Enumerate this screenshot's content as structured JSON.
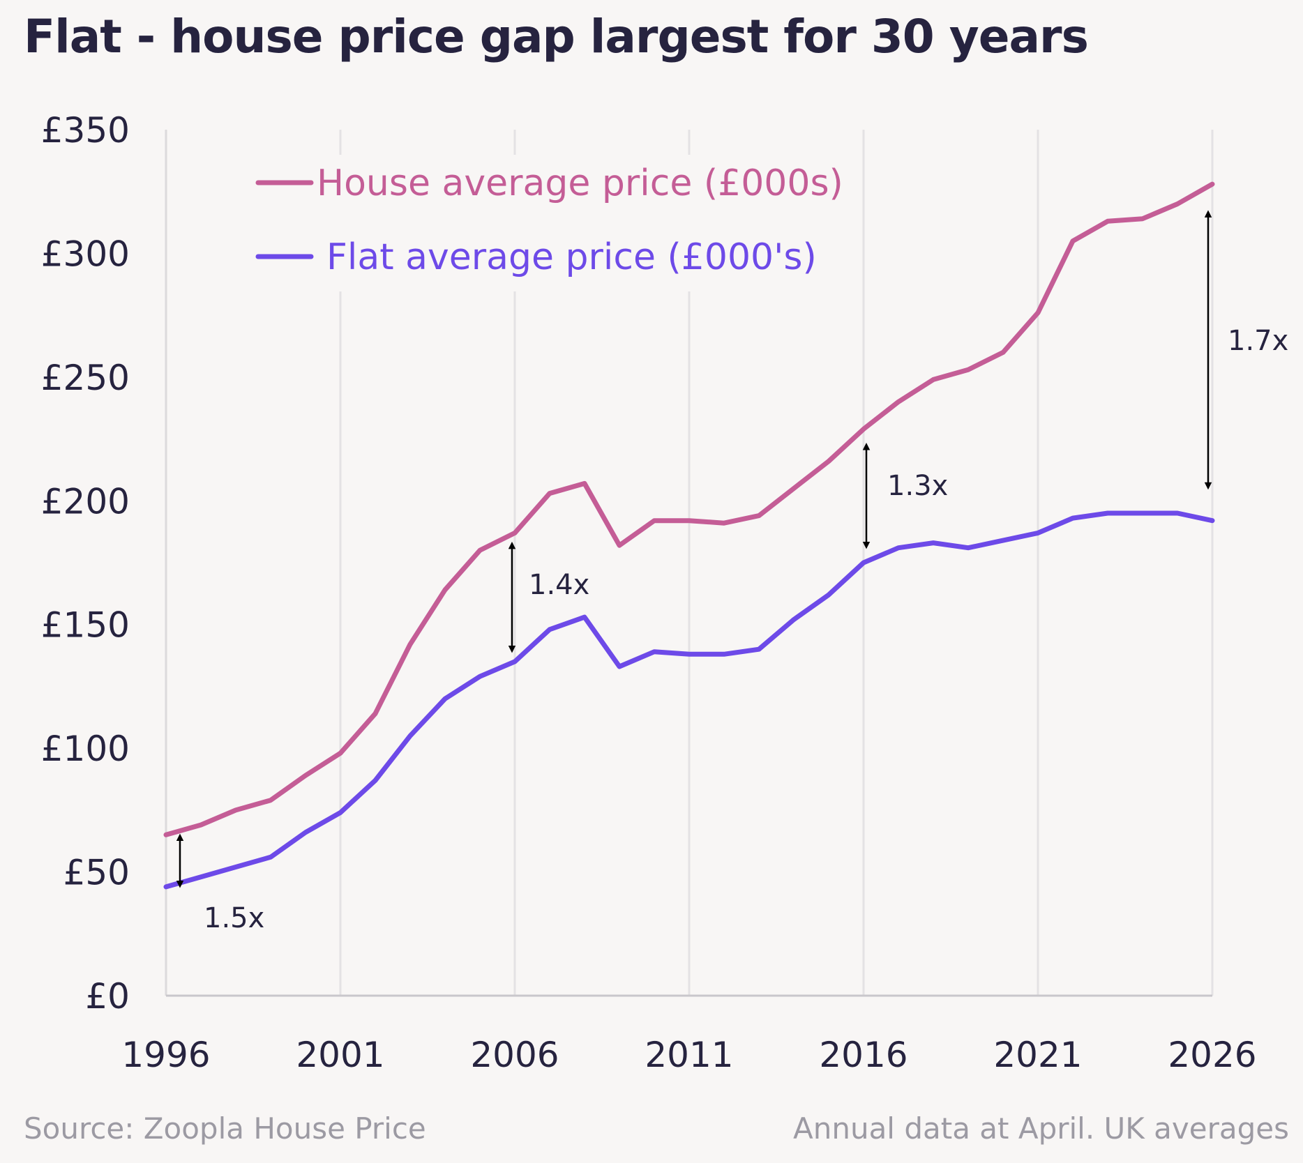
{
  "title": "Flat - house price gap largest for 30 years",
  "source": "Source: Zoopla House Price",
  "note": "Annual data at April. UK averages",
  "chart_data": {
    "type": "line",
    "title": "Flat - house price gap largest for 30 years",
    "x": [
      1996,
      1997,
      1998,
      1999,
      2000,
      2001,
      2002,
      2003,
      2004,
      2005,
      2006,
      2007,
      2008,
      2009,
      2010,
      2011,
      2012,
      2013,
      2014,
      2015,
      2016,
      2017,
      2018,
      2019,
      2020,
      2021,
      2022,
      2023,
      2024,
      2025,
      2026
    ],
    "x_ticks": [
      1996,
      2001,
      2006,
      2011,
      2016,
      2021,
      2026
    ],
    "y_ticks": [
      0,
      50,
      100,
      150,
      200,
      250,
      300,
      350
    ],
    "y_tick_labels": [
      "£0",
      "£50",
      "£100",
      "£150",
      "£200",
      "£250",
      "£300",
      "£350"
    ],
    "xlim": [
      1996,
      2026
    ],
    "ylim": [
      0,
      350
    ],
    "grid": "vertical",
    "legend_position": "top-left",
    "series": [
      {
        "name": "House average price (£000s)",
        "color": "#c45d96",
        "values": [
          65,
          69,
          75,
          79,
          89,
          98,
          114,
          142,
          164,
          180,
          187,
          203,
          207,
          182,
          192,
          192,
          191,
          194,
          205,
          216,
          229,
          240,
          249,
          253,
          260,
          276,
          305,
          313,
          314,
          320,
          328
        ]
      },
      {
        "name": "Flat average price (£000's)",
        "color": "#6d4ae8",
        "values": [
          44,
          48,
          52,
          56,
          66,
          74,
          87,
          105,
          120,
          129,
          135,
          148,
          153,
          133,
          139,
          138,
          138,
          140,
          152,
          162,
          175,
          181,
          183,
          181,
          184,
          187,
          193,
          195,
          195,
          195,
          192
        ]
      }
    ],
    "annotations": [
      {
        "label": "1.5x",
        "year": 1996,
        "from": 64,
        "to": 45
      },
      {
        "label": "1.4x",
        "year": 2006,
        "from": 182,
        "to": 140
      },
      {
        "label": "1.3x",
        "year": 2016,
        "from": 222,
        "to": 182
      },
      {
        "label": "1.7x",
        "year": 2026,
        "from": 316,
        "to": 206
      }
    ]
  }
}
